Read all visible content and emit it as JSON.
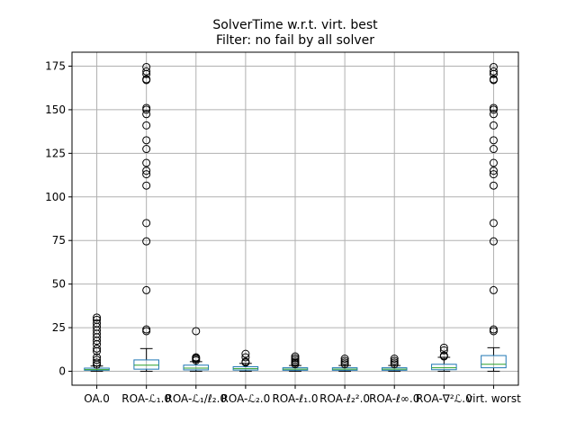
{
  "chart_data": {
    "type": "box",
    "title": "SolverTime w.r.t. virt. best",
    "subtitle": "Filter: no fail by all solver",
    "xlabel": "",
    "ylabel": "",
    "ylim": [
      -8,
      183
    ],
    "yticks": [
      0,
      25,
      50,
      75,
      100,
      125,
      150,
      175
    ],
    "grid": true,
    "colors": {
      "box": "#1f77b4",
      "median": "#2ca02c",
      "whisker": "#000000",
      "flier": "#000000",
      "grid": "#b0b0b0"
    },
    "categories": [
      "OA.0",
      "ROA-ℒ₁.0",
      "ROA-ℒ₁/ℓ₂.0",
      "ROA-ℒ₂.0",
      "ROA-ℓ₁.0",
      "ROA-ℓ₂².0",
      "ROA-ℓ∞.0",
      "ROA-∇²ℒ.0",
      "virt. worst"
    ],
    "series": [
      {
        "q1": 0.6,
        "median": 1.0,
        "q3": 1.8,
        "whislo": 0,
        "whishi": 3.0,
        "fliers": [
          3.8,
          5.0,
          6.5,
          8.0,
          11.5,
          13.0,
          15.5,
          17.5,
          19.5,
          21.5,
          23.5,
          25.5,
          27.5,
          29.5,
          30.8
        ]
      },
      {
        "q1": 1.2,
        "median": 3.5,
        "q3": 6.5,
        "whislo": 0,
        "whishi": 13.0,
        "fliers": [
          23.0,
          24.0,
          46.5,
          74.5,
          85.0,
          106.5,
          113.0,
          115.0,
          119.5,
          127.5,
          132.5,
          141.0,
          147.5,
          150.0,
          151.0,
          167.0,
          167.5,
          170.5,
          172.0,
          174.5
        ]
      },
      {
        "q1": 0.8,
        "median": 1.8,
        "q3": 3.5,
        "whislo": 0,
        "whishi": 5.5,
        "fliers": [
          6.2,
          7.0,
          7.5,
          8.0,
          23.0
        ]
      },
      {
        "q1": 0.7,
        "median": 1.5,
        "q3": 2.6,
        "whislo": 0,
        "whishi": 4.5,
        "fliers": [
          5.0,
          5.5,
          8.0,
          10.0
        ]
      },
      {
        "q1": 0.6,
        "median": 1.2,
        "q3": 2.0,
        "whislo": 0,
        "whishi": 3.3,
        "fliers": [
          4.0,
          4.8,
          5.5,
          6.5,
          7.5,
          8.5
        ]
      },
      {
        "q1": 0.6,
        "median": 1.2,
        "q3": 2.0,
        "whislo": 0,
        "whishi": 3.3,
        "fliers": [
          4.0,
          5.0,
          6.0,
          7.2
        ]
      },
      {
        "q1": 0.6,
        "median": 1.2,
        "q3": 2.0,
        "whislo": 0,
        "whishi": 3.3,
        "fliers": [
          4.0,
          5.0,
          6.0,
          7.2
        ]
      },
      {
        "q1": 0.9,
        "median": 2.0,
        "q3": 4.0,
        "whislo": 0,
        "whishi": 8.0,
        "fliers": [
          8.5,
          9.0,
          12.0,
          13.5
        ]
      },
      {
        "q1": 2.0,
        "median": 4.0,
        "q3": 9.0,
        "whislo": 0,
        "whishi": 13.5,
        "fliers": [
          23.0,
          24.0,
          46.5,
          74.5,
          85.0,
          106.5,
          113.0,
          115.0,
          119.5,
          127.5,
          132.5,
          141.0,
          147.5,
          150.0,
          151.0,
          167.0,
          167.5,
          170.5,
          172.0,
          174.5
        ]
      }
    ]
  }
}
